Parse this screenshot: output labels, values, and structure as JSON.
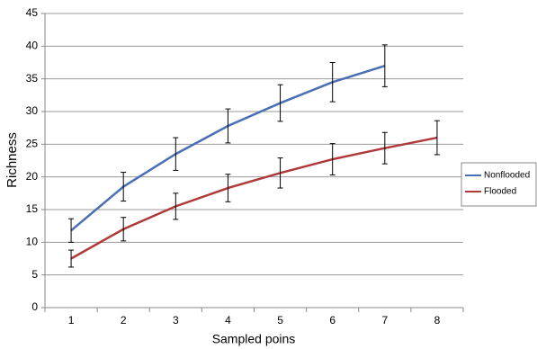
{
  "chart_data": {
    "type": "line",
    "x_label": "Sampled poins",
    "y_label": "Richness",
    "categories": [
      "1",
      "2",
      "3",
      "4",
      "5",
      "6",
      "7",
      "8"
    ],
    "series": [
      {
        "name": "Nonflooded",
        "color": "#4a6fb5",
        "values": [
          11.8,
          18.5,
          23.5,
          27.8,
          31.3,
          34.5,
          37,
          null
        ],
        "errors": [
          1.8,
          2.2,
          2.5,
          2.6,
          2.8,
          3,
          3.2,
          null
        ]
      },
      {
        "name": "Flooded",
        "color": "#b03a3a",
        "values": [
          7.5,
          12,
          15.5,
          18.3,
          20.6,
          22.7,
          24.4,
          26
        ],
        "errors": [
          1.3,
          1.8,
          2,
          2.1,
          2.3,
          2.4,
          2.4,
          2.6
        ]
      }
    ],
    "ylim": [
      0,
      45
    ],
    "yticks": [
      0,
      5,
      10,
      15,
      20,
      25,
      30,
      35,
      40,
      45
    ],
    "grid": true,
    "legend": "right"
  }
}
